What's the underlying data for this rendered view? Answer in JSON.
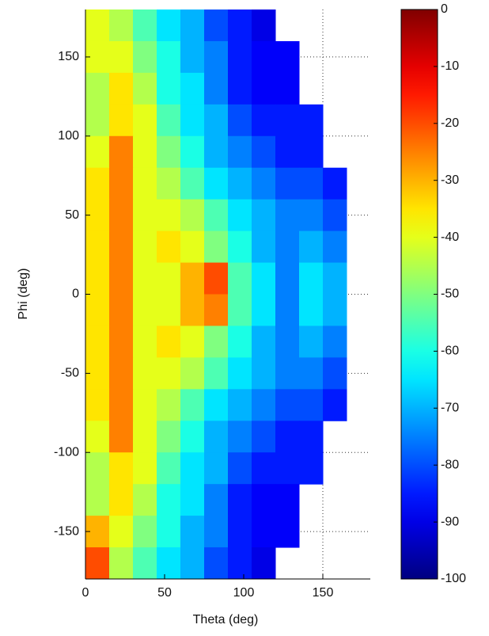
{
  "chart_data": {
    "type": "heatmap",
    "x_label": "Theta (deg)",
    "y_label": "Phi (deg)",
    "x": [
      7.5,
      22.5,
      37.5,
      52.5,
      67.5,
      82.5,
      97.5,
      112.5,
      127.5,
      142.5,
      157.5,
      172.5
    ],
    "y": [
      170,
      150,
      130,
      110,
      90,
      70,
      50,
      30,
      10,
      -10,
      -30,
      -50,
      -70,
      -90,
      -110,
      -130,
      -150,
      -170
    ],
    "z": [
      [
        -40,
        -45,
        -55,
        -65,
        -70,
        -80,
        -85,
        -90,
        null,
        null,
        null,
        null
      ],
      [
        -40,
        -40,
        -50,
        -60,
        -70,
        -75,
        -85,
        -88,
        -88,
        null,
        null,
        null
      ],
      [
        -45,
        -35,
        -45,
        -60,
        -65,
        -75,
        -85,
        -88,
        -88,
        null,
        null,
        null
      ],
      [
        -45,
        -35,
        -40,
        -55,
        -65,
        -70,
        -80,
        -85,
        -85,
        -85,
        null,
        null
      ],
      [
        -40,
        -25,
        -40,
        -50,
        -60,
        -70,
        -75,
        -80,
        -85,
        -85,
        null,
        null
      ],
      [
        -35,
        -25,
        -40,
        -45,
        -55,
        -65,
        -70,
        -75,
        -80,
        -80,
        -85,
        null
      ],
      [
        -35,
        -25,
        -40,
        -40,
        -45,
        -55,
        -65,
        -70,
        -75,
        -75,
        -80,
        null
      ],
      [
        -35,
        -25,
        -40,
        -35,
        -40,
        -50,
        -60,
        -70,
        -75,
        -70,
        -75,
        null
      ],
      [
        -35,
        -25,
        -40,
        -40,
        -30,
        -20,
        -55,
        -65,
        -75,
        -65,
        -70,
        null
      ],
      [
        -35,
        -25,
        -40,
        -40,
        -30,
        -25,
        -55,
        -65,
        -75,
        -65,
        -70,
        null
      ],
      [
        -35,
        -25,
        -40,
        -35,
        -40,
        -50,
        -60,
        -70,
        -75,
        -70,
        -75,
        null
      ],
      [
        -35,
        -25,
        -40,
        -40,
        -45,
        -55,
        -65,
        -70,
        -75,
        -75,
        -80,
        null
      ],
      [
        -35,
        -25,
        -40,
        -45,
        -55,
        -65,
        -70,
        -75,
        -80,
        -80,
        -85,
        null
      ],
      [
        -40,
        -25,
        -40,
        -50,
        -60,
        -70,
        -75,
        -80,
        -85,
        -85,
        null,
        null
      ],
      [
        -45,
        -35,
        -40,
        -55,
        -65,
        -70,
        -80,
        -85,
        -85,
        -85,
        null,
        null
      ],
      [
        -45,
        -35,
        -45,
        -60,
        -65,
        -75,
        -85,
        -88,
        -88,
        null,
        null,
        null
      ],
      [
        -30,
        -40,
        -50,
        -60,
        -70,
        -75,
        -85,
        -88,
        -88,
        null,
        null,
        null
      ],
      [
        -20,
        -45,
        -55,
        -65,
        -70,
        -80,
        -85,
        -90,
        null,
        null,
        null,
        null
      ]
    ],
    "xlim": [
      0,
      180
    ],
    "xticks": [
      0,
      50,
      100,
      150
    ],
    "ylim": [
      -180,
      180
    ],
    "yticks": [
      -150,
      -100,
      -50,
      0,
      50,
      100,
      150
    ],
    "zlim": [
      -100,
      0
    ],
    "colorbar_ticks": [
      0,
      -10,
      -20,
      -30,
      -40,
      -50,
      -60,
      -70,
      -80,
      -90,
      -100
    ],
    "colormap": "jet",
    "grid": true
  }
}
